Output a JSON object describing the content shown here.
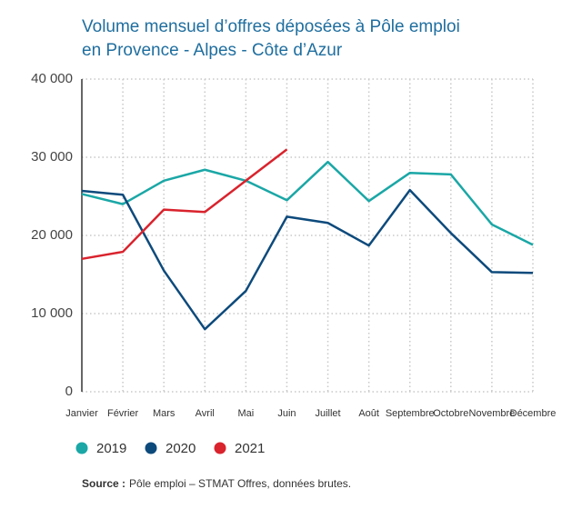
{
  "chart_data": {
    "type": "line",
    "title": [
      "Volume mensuel d’offres déposées à Pôle emploi",
      "en Provence - Alpes - Côte d’Azur"
    ],
    "categories": [
      "Janvier",
      "Février",
      "Mars",
      "Avril",
      "Mai",
      "Juin",
      "Juillet",
      "Août",
      "Septembre",
      "Octobre",
      "Novembre",
      "Décembre"
    ],
    "series": [
      {
        "name": "2019",
        "color": "#1aa7a6",
        "values": [
          25300,
          24000,
          27000,
          28400,
          27000,
          24500,
          29400,
          24400,
          28000,
          27800,
          21400,
          18800
        ]
      },
      {
        "name": "2020",
        "color": "#0d4a7c",
        "values": [
          25700,
          25200,
          15500,
          8000,
          12900,
          22400,
          21600,
          18700,
          25800,
          20300,
          15300,
          15200
        ]
      },
      {
        "name": "2021",
        "color": "#d9232d",
        "values": [
          17000,
          17900,
          23300,
          23000,
          27000,
          31000,
          null,
          null,
          null,
          null,
          null,
          null
        ]
      }
    ],
    "ylim": [
      0,
      40000
    ],
    "yticks": [
      0,
      {
        "value": 10000,
        "label": "10 000"
      },
      {
        "value": 20000,
        "label": "20 000"
      },
      {
        "value": 30000,
        "label": "30 000"
      },
      {
        "value": 40000,
        "label": "40 000"
      }
    ],
    "grid": true,
    "source_label": "Source :",
    "source": "Pôle emploi – STMAT Offres, données brutes."
  }
}
